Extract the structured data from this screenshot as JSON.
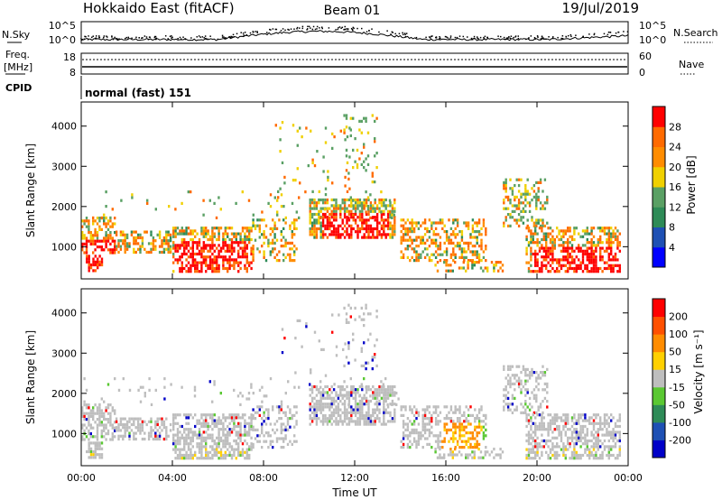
{
  "header": {
    "station": "Hokkaido East (fitACF)",
    "beam": "Beam 01",
    "date": "19/Jul/2019"
  },
  "noise_panel": {
    "left_label": "N.Sky",
    "right_label": "N.Search",
    "left_ticks": [
      "10^5",
      "10^0"
    ],
    "right_ticks": [
      "10^5",
      "10^0"
    ]
  },
  "freq_panel": {
    "left_label_1": "Freq.",
    "left_label_2": "[MHz]",
    "left_ticks": [
      "18",
      "8"
    ],
    "right_label": "Nave",
    "right_ticks": [
      "60",
      "0"
    ]
  },
  "cpid_panel": {
    "label": "CPID",
    "program": "normal (fast) 151"
  },
  "chart_data": [
    {
      "type": "heatmap",
      "name": "power",
      "ylabel": "Slant Range [km]",
      "yticks": [
        "1000",
        "2000",
        "3000",
        "4000"
      ],
      "ylim": [
        200,
        4600
      ],
      "xlim": [
        0,
        24
      ],
      "colorbar_label": "Power [dB]",
      "colorbar_ticks": [
        "4",
        "8",
        "12",
        "16",
        "20",
        "24",
        "28"
      ],
      "colorbar_colors": [
        "#0000ff",
        "#1e50b4",
        "#2e8b57",
        "#5aa064",
        "#f0d000",
        "#ff8c00",
        "#ff6a00",
        "#ff0000"
      ],
      "grid": false
    },
    {
      "type": "heatmap",
      "name": "velocity",
      "ylabel": "Slant Range [km]",
      "yticks": [
        "1000",
        "2000",
        "3000",
        "4000"
      ],
      "ylim": [
        200,
        4600
      ],
      "xlim": [
        0,
        24
      ],
      "xlabel": "Time UT",
      "xticks": [
        "00:00",
        "04:00",
        "08:00",
        "12:00",
        "16:00",
        "20:00",
        "00:00"
      ],
      "colorbar_label": "Velocity [m s⁻¹]",
      "colorbar_ticks": [
        "200",
        "100",
        "50",
        "15",
        "-15",
        "-50",
        "-100",
        "-200"
      ],
      "colorbar_colors": [
        "#0000c8",
        "#1e50b4",
        "#2e8b57",
        "#5ac832",
        "#bebebe",
        "#ffd000",
        "#ff8c00",
        "#ff5000",
        "#ff0000"
      ],
      "grid": false
    }
  ]
}
